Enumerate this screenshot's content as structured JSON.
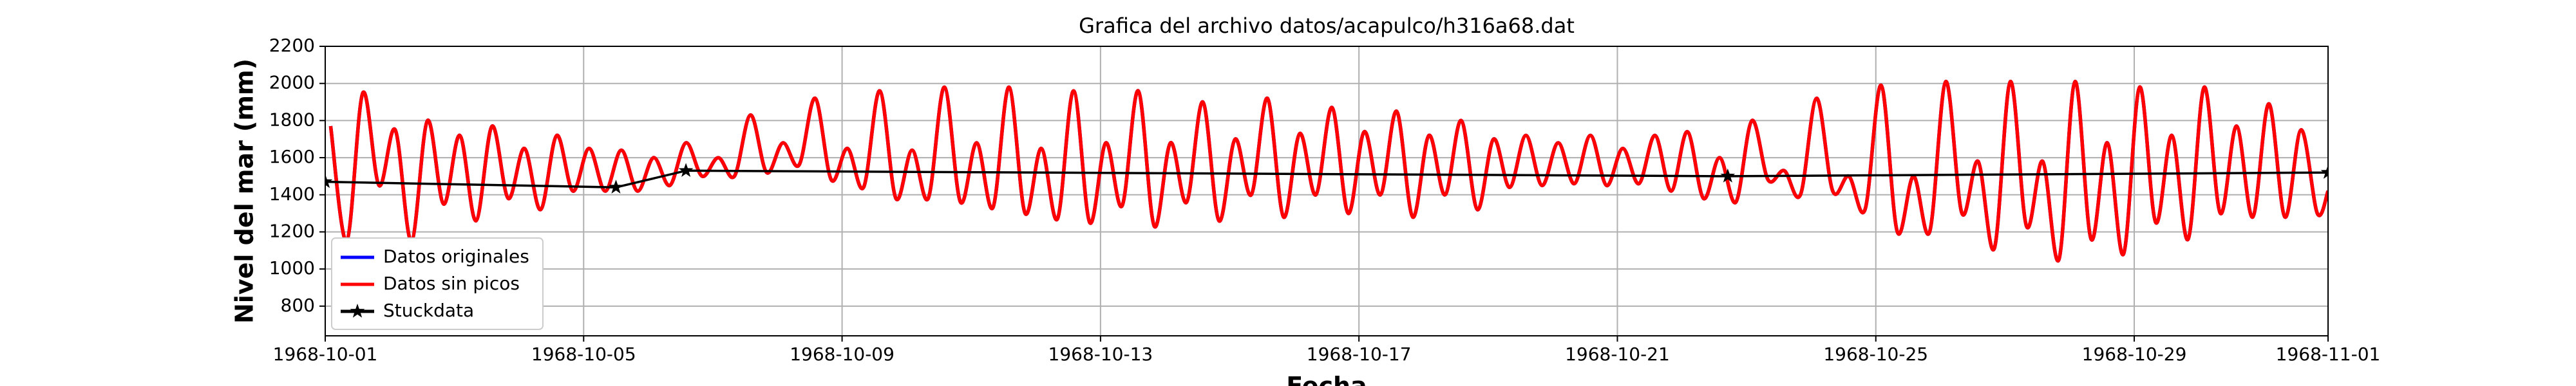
{
  "chart_data": {
    "type": "line",
    "title": "Grafica del archivo datos/acapulco/h316a68.dat",
    "x_label": "Fecha",
    "y_label": "Nivel del mar (mm)",
    "xlim": [
      "1968-10-01",
      "1968-11-01"
    ],
    "xticks": [
      "1968-10-01",
      "1968-10-05",
      "1968-10-09",
      "1968-10-13",
      "1968-10-17",
      "1968-10-21",
      "1968-10-25",
      "1968-10-29",
      "1968-11-01"
    ],
    "ylim": [
      640,
      2200
    ],
    "yticks": [
      800,
      1000,
      1200,
      1400,
      1600,
      1800,
      2000,
      2200
    ],
    "grid": true,
    "legend": "lower left",
    "x": [
      "1968-10-01T02:00",
      "1968-10-01T08:00",
      "1968-10-01T14:00",
      "1968-10-01T20:00",
      "1968-10-02T02:00",
      "1968-10-02T08:00",
      "1968-10-02T14:00",
      "1968-10-02T20:00",
      "1968-10-03T02:00",
      "1968-10-03T08:00",
      "1968-10-03T14:00",
      "1968-10-03T20:00",
      "1968-10-04T02:00",
      "1968-10-04T08:00",
      "1968-10-04T14:00",
      "1968-10-04T20:00",
      "1968-10-05T02:00",
      "1968-10-05T08:00",
      "1968-10-05T14:00",
      "1968-10-05T20:00",
      "1968-10-06T02:00",
      "1968-10-06T08:00",
      "1968-10-06T14:00",
      "1968-10-06T20:00",
      "1968-10-07T02:00",
      "1968-10-07T08:00",
      "1968-10-07T14:00",
      "1968-10-07T20:00",
      "1968-10-08T02:00",
      "1968-10-08T08:00",
      "1968-10-08T14:00",
      "1968-10-08T20:00",
      "1968-10-09T02:00",
      "1968-10-09T08:00",
      "1968-10-09T14:00",
      "1968-10-09T20:00",
      "1968-10-10T02:00",
      "1968-10-10T08:00",
      "1968-10-10T14:00",
      "1968-10-10T20:00",
      "1968-10-11T02:00",
      "1968-10-11T08:00",
      "1968-10-11T14:00",
      "1968-10-11T20:00",
      "1968-10-12T02:00",
      "1968-10-12T08:00",
      "1968-10-12T14:00",
      "1968-10-12T20:00",
      "1968-10-13T02:00",
      "1968-10-13T08:00",
      "1968-10-13T14:00",
      "1968-10-13T20:00",
      "1968-10-14T02:00",
      "1968-10-14T08:00",
      "1968-10-14T14:00",
      "1968-10-14T20:00",
      "1968-10-15T02:00",
      "1968-10-15T08:00",
      "1968-10-15T14:00",
      "1968-10-15T20:00",
      "1968-10-16T02:00",
      "1968-10-16T08:00",
      "1968-10-16T14:00",
      "1968-10-16T20:00",
      "1968-10-17T02:00",
      "1968-10-17T08:00",
      "1968-10-17T14:00",
      "1968-10-17T20:00",
      "1968-10-18T02:00",
      "1968-10-18T08:00",
      "1968-10-18T14:00",
      "1968-10-18T20:00",
      "1968-10-19T02:00",
      "1968-10-19T08:00",
      "1968-10-19T14:00",
      "1968-10-19T20:00",
      "1968-10-20T02:00",
      "1968-10-20T08:00",
      "1968-10-20T14:00",
      "1968-10-20T20:00",
      "1968-10-21T02:00",
      "1968-10-21T08:00",
      "1968-10-21T14:00",
      "1968-10-21T20:00",
      "1968-10-22T02:00",
      "1968-10-22T08:00",
      "1968-10-22T14:00",
      "1968-10-22T20:00",
      "1968-10-23T02:00",
      "1968-10-23T08:00",
      "1968-10-23T14:00",
      "1968-10-23T20:00",
      "1968-10-24T02:00",
      "1968-10-24T08:00",
      "1968-10-24T14:00",
      "1968-10-24T20:00",
      "1968-10-25T02:00",
      "1968-10-25T08:00",
      "1968-10-25T14:00",
      "1968-10-25T20:00",
      "1968-10-26T02:00",
      "1968-10-26T08:00",
      "1968-10-26T14:00",
      "1968-10-26T20:00",
      "1968-10-27T02:00",
      "1968-10-27T08:00",
      "1968-10-27T14:00",
      "1968-10-27T20:00",
      "1968-10-28T02:00",
      "1968-10-28T08:00",
      "1968-10-28T14:00",
      "1968-10-28T20:00",
      "1968-10-29T02:00",
      "1968-10-29T08:00",
      "1968-10-29T14:00",
      "1968-10-29T20:00",
      "1968-10-30T02:00",
      "1968-10-30T08:00",
      "1968-10-30T14:00",
      "1968-10-30T20:00",
      "1968-10-31T02:00",
      "1968-10-31T08:00",
      "1968-10-31T14:00",
      "1968-10-31T20:00",
      "1968-11-01T00:00"
    ],
    "series": [
      {
        "name": "Datos originales",
        "color": "#0000ff",
        "values": [
          1770,
          1150,
          1950,
          1450,
          1750,
          1150,
          1800,
          1350,
          1720,
          1260,
          1770,
          1380,
          1650,
          1320,
          1720,
          1420,
          1650,
          1420,
          1640,
          1420,
          1600,
          1450,
          1680,
          1500,
          1600,
          1500,
          1830,
          1520,
          1680,
          1560,
          1920,
          1480,
          1650,
          1440,
          1960,
          1380,
          1640,
          1380,
          1980,
          1360,
          1680,
          1330,
          1980,
          1300,
          1650,
          1270,
          1960,
          1250,
          1680,
          1340,
          1960,
          1230,
          1680,
          1360,
          1900,
          1260,
          1700,
          1400,
          1920,
          1280,
          1730,
          1400,
          1870,
          1300,
          1740,
          1400,
          1850,
          1280,
          1720,
          1400,
          1800,
          1320,
          1700,
          1440,
          1720,
          1450,
          1680,
          1460,
          1720,
          1450,
          1650,
          1460,
          1720,
          1420,
          1740,
          1380,
          1600,
          1360,
          1800,
          1480,
          1530,
          1400,
          1920,
          1420,
          1500,
          1320,
          1990,
          1200,
          1500,
          1200,
          2010,
          1300,
          1580,
          1110,
          2010,
          1230,
          1580,
          1050,
          2010,
          1160,
          1680,
          1080,
          1980,
          1250,
          1720,
          1160,
          1980,
          1300,
          1770,
          1280,
          1890,
          1280,
          1750,
          1300,
          1420
        ]
      },
      {
        "name": "Datos sin picos",
        "color": "#ff0000",
        "values": [
          1770,
          1150,
          1950,
          1450,
          1750,
          1150,
          1800,
          1350,
          1720,
          1260,
          1770,
          1380,
          1650,
          1320,
          1720,
          1420,
          1650,
          1420,
          1640,
          1420,
          1600,
          1450,
          1680,
          1500,
          1600,
          1500,
          1830,
          1520,
          1680,
          1560,
          1920,
          1480,
          1650,
          1440,
          1960,
          1380,
          1640,
          1380,
          1980,
          1360,
          1680,
          1330,
          1980,
          1300,
          1650,
          1270,
          1960,
          1250,
          1680,
          1340,
          1960,
          1230,
          1680,
          1360,
          1900,
          1260,
          1700,
          1400,
          1920,
          1280,
          1730,
          1400,
          1870,
          1300,
          1740,
          1400,
          1850,
          1280,
          1720,
          1400,
          1800,
          1320,
          1700,
          1440,
          1720,
          1450,
          1680,
          1460,
          1720,
          1450,
          1650,
          1460,
          1720,
          1420,
          1740,
          1380,
          1600,
          1360,
          1800,
          1480,
          1530,
          1400,
          1920,
          1420,
          1500,
          1320,
          1990,
          1200,
          1500,
          1200,
          2010,
          1300,
          1580,
          1110,
          2010,
          1230,
          1580,
          1050,
          2010,
          1160,
          1680,
          1080,
          1980,
          1250,
          1720,
          1160,
          1980,
          1300,
          1770,
          1280,
          1890,
          1280,
          1750,
          1300,
          1420
        ]
      },
      {
        "name": "Stuckdata",
        "color": "#000000",
        "marker": "star",
        "x": [
          "1968-10-01T00:00",
          "1968-10-05T12:00",
          "1968-10-06T14:00",
          "1968-10-22T17:00",
          "1968-11-01T00:00"
        ],
        "values": [
          1470,
          1440,
          1530,
          1500,
          1520
        ]
      }
    ]
  }
}
